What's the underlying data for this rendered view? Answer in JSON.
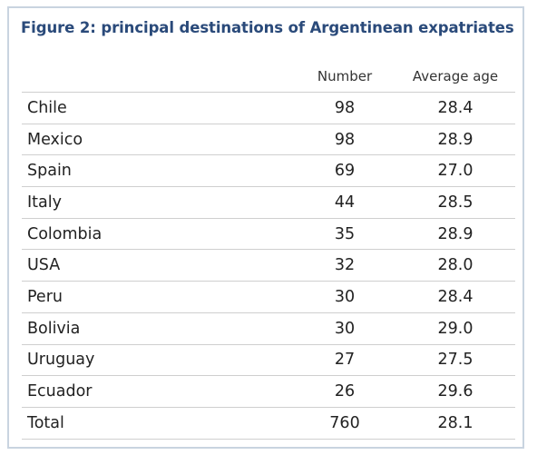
{
  "chart_data": {
    "type": "table",
    "title": "Figure 2: principal destinations of Argentinean expatriates",
    "columns": [
      "",
      "Number",
      "Average age"
    ],
    "rows": [
      {
        "label": "Chile",
        "number": "98",
        "average_age": "28.4"
      },
      {
        "label": "Mexico",
        "number": "98",
        "average_age": "28.9"
      },
      {
        "label": "Spain",
        "number": "69",
        "average_age": "27.0"
      },
      {
        "label": "Italy",
        "number": "44",
        "average_age": "28.5"
      },
      {
        "label": "Colombia",
        "number": "35",
        "average_age": "28.9"
      },
      {
        "label": "USA",
        "number": "32",
        "average_age": "28.0"
      },
      {
        "label": "Peru",
        "number": "30",
        "average_age": "28.4"
      },
      {
        "label": "Bolivia",
        "number": "30",
        "average_age": "29.0"
      },
      {
        "label": "Uruguay",
        "number": "27",
        "average_age": "27.5"
      },
      {
        "label": "Ecuador",
        "number": "26",
        "average_age": "29.6"
      },
      {
        "label": "Total",
        "number": "760",
        "average_age": "28.1"
      }
    ]
  },
  "colors": {
    "title": "#2a4a7a",
    "frame_border": "#c9d4e0",
    "row_divider": "#cfcfcf",
    "text": "#222222"
  }
}
